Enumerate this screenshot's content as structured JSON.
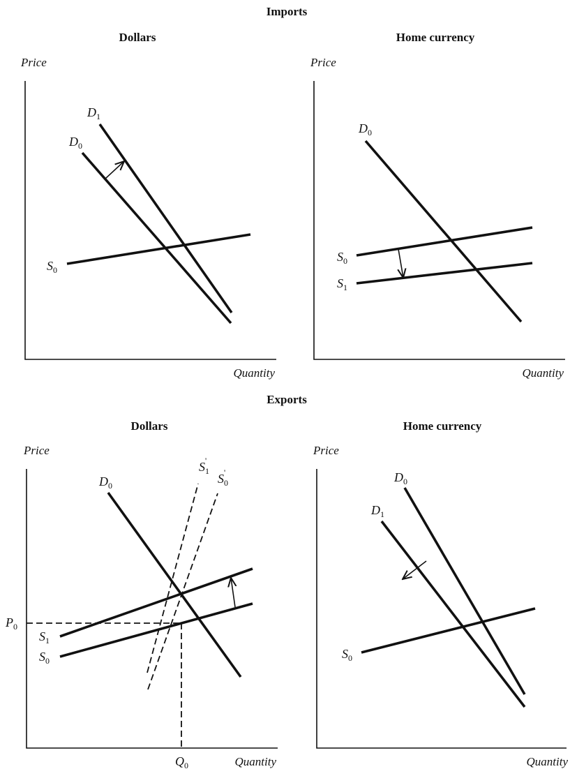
{
  "imports": {
    "title": "Imports",
    "dollars": {
      "heading": "Dollars",
      "ylabel": "Price",
      "xlabel": "Quantity",
      "curves": {
        "d1": {
          "letter": "D",
          "sub": "1"
        },
        "d0": {
          "letter": "D",
          "sub": "0"
        },
        "s0": {
          "letter": "S",
          "sub": "0"
        }
      }
    },
    "home": {
      "heading": "Home currency",
      "ylabel": "Price",
      "xlabel": "Quantity",
      "curves": {
        "d0": {
          "letter": "D",
          "sub": "0"
        },
        "s0": {
          "letter": "S",
          "sub": "0"
        },
        "s1": {
          "letter": "S",
          "sub": "1"
        }
      }
    }
  },
  "exports": {
    "title": "Exports",
    "dollars": {
      "heading": "Dollars",
      "ylabel": "Price",
      "xlabel": "Quantity",
      "p0": {
        "letter": "P",
        "sub": "0"
      },
      "q0": {
        "letter": "Q",
        "sub": "0"
      },
      "curves": {
        "d0": {
          "letter": "D",
          "sub": "0"
        },
        "s1": {
          "letter": "S",
          "sub": "1"
        },
        "s0": {
          "letter": "S",
          "sub": "0"
        },
        "s1p": {
          "letter": "S",
          "sub": "1",
          "sup": "'"
        },
        "s0p": {
          "letter": "S",
          "sub": "0",
          "sup": "'"
        }
      }
    },
    "home": {
      "heading": "Home currency",
      "ylabel": "Price",
      "xlabel": "Quantity",
      "curves": {
        "d0": {
          "letter": "D",
          "sub": "0"
        },
        "d1": {
          "letter": "D",
          "sub": "1"
        },
        "s0": {
          "letter": "S",
          "sub": "0"
        }
      }
    }
  }
}
